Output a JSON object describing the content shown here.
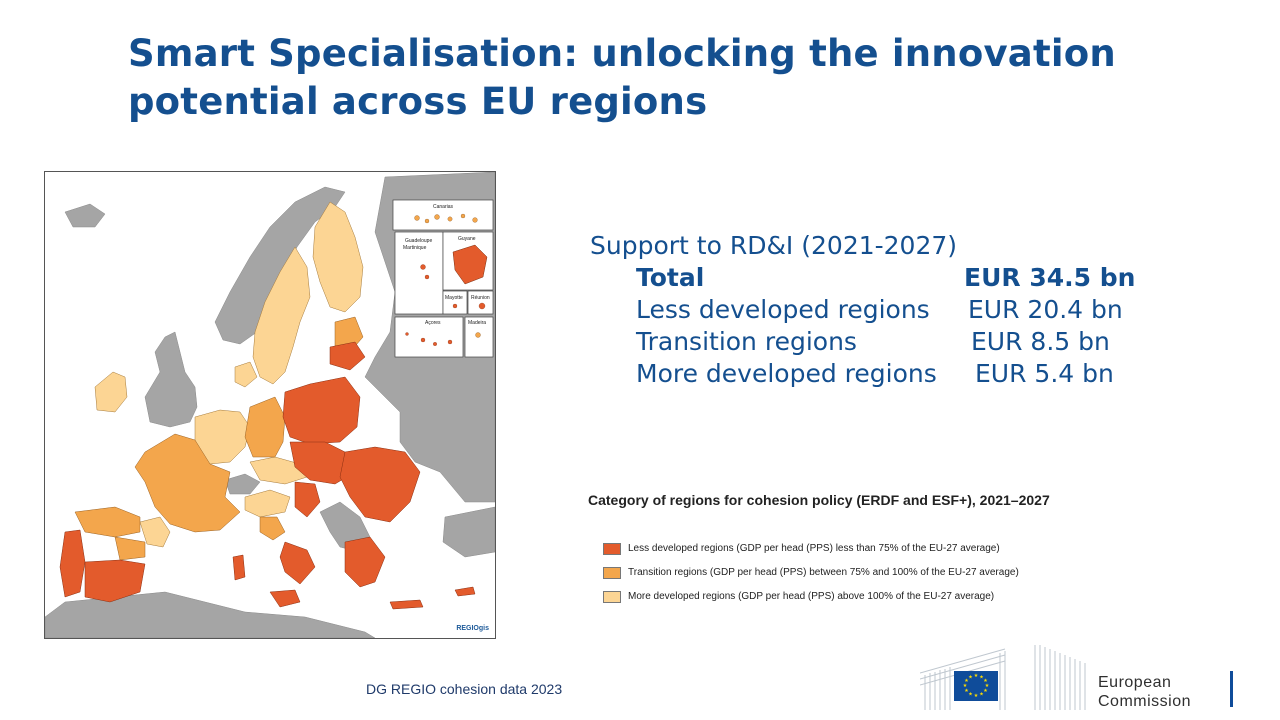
{
  "slide": {
    "title_line1": "Smart Specialisation: unlocking the innovation",
    "title_line2": "potential across EU regions"
  },
  "support": {
    "heading": "Support to RD&I (2021-2027)",
    "rows": [
      {
        "label": "Total",
        "amount": "EUR 34.5 bn"
      },
      {
        "label": "Less developed regions",
        "amount": "EUR 20.4 bn"
      },
      {
        "label": "Transition regions",
        "amount": "EUR 8.5 bn"
      },
      {
        "label": "More developed regions",
        "amount": "EUR 5.4 bn"
      }
    ]
  },
  "map": {
    "insets": [
      "Canarias",
      "Guadeloupe",
      "Martinique",
      "Guyane",
      "Mayotte",
      "Réunion",
      "Açores",
      "Madeira"
    ],
    "credit": "REGIOgis",
    "colors": {
      "less_developed": "#e35b2c",
      "transition": "#f3a64c",
      "more_developed": "#fcd594",
      "non_eu": "#a5a5a5",
      "sea": "#ffffff"
    }
  },
  "legend": {
    "title": "Category of regions for cohesion policy (ERDF and ESF+), 2021–2027",
    "items": [
      {
        "label": "Less developed regions (GDP per head (PPS) less than 75% of the EU-27 average)",
        "color": "#e35b2c"
      },
      {
        "label": "Transition regions (GDP per head (PPS) between 75% and 100% of the EU-27 average)",
        "color": "#f3a64c"
      },
      {
        "label": "More developed regions (GDP per head (PPS) above 100% of the EU-27 average)",
        "color": "#fcd594"
      }
    ]
  },
  "footer": {
    "source": "DG REGIO cohesion data 2023",
    "logo_line1": "European",
    "logo_line2": "Commission"
  }
}
